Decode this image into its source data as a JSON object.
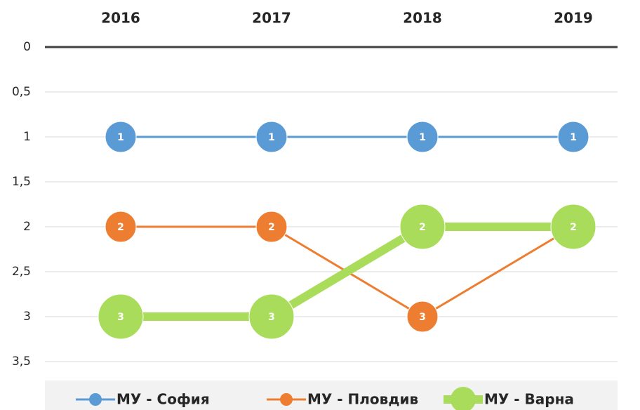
{
  "chart_data": {
    "type": "line",
    "inverted_y": true,
    "grid": true,
    "legend": "bottom",
    "categories": [
      "2016",
      "2017",
      "2018",
      "2019"
    ],
    "ylim": [
      0,
      3.5
    ],
    "yticks": [
      0,
      {
        "value": 0.5,
        "label": "0,5"
      },
      1,
      {
        "value": 1.5,
        "label": "1,5"
      },
      2,
      {
        "value": 2.5,
        "label": "2,5"
      },
      3,
      {
        "value": 3.5,
        "label": "3,5"
      }
    ],
    "series": [
      {
        "name": "МУ - София",
        "color": "#5b9bd5",
        "values": [
          1,
          1,
          1,
          1
        ]
      },
      {
        "name": "МУ - Пловдив",
        "color": "#ed7d31",
        "values": [
          2,
          2,
          3,
          2
        ]
      },
      {
        "name": "МУ - Варна",
        "color": "#a9dc5a",
        "values": [
          3,
          3,
          2,
          2
        ]
      }
    ]
  }
}
